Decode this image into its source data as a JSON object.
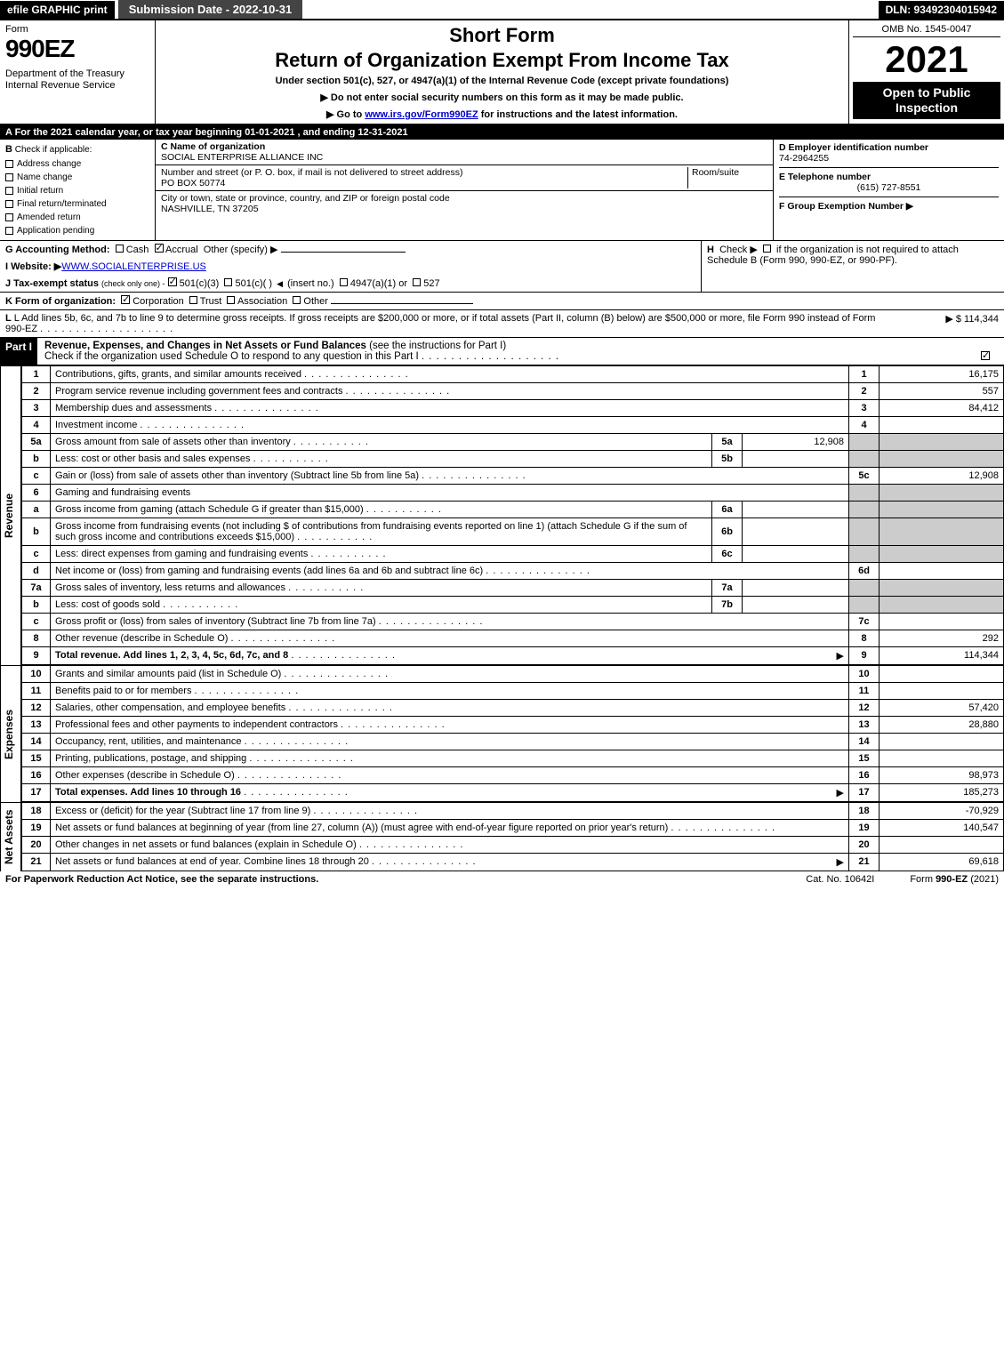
{
  "top": {
    "efile": "efile GRAPHIC print",
    "submission": "Submission Date - 2022-10-31",
    "dln": "DLN: 93492304015942"
  },
  "header": {
    "form_label": "Form",
    "form_number": "990EZ",
    "dept": "Department of the Treasury\nInternal Revenue Service",
    "short_form": "Short Form",
    "title": "Return of Organization Exempt From Income Tax",
    "subtitle": "Under section 501(c), 527, or 4947(a)(1) of the Internal Revenue Code (except private foundations)",
    "instr1": "▶ Do not enter social security numbers on this form as it may be made public.",
    "instr2_pre": "▶ Go to ",
    "instr2_link": "www.irs.gov/Form990EZ",
    "instr2_post": " for instructions and the latest information.",
    "omb": "OMB No. 1545-0047",
    "year": "2021",
    "inspection": "Open to Public Inspection"
  },
  "section_a": "A  For the 2021 calendar year, or tax year beginning 01-01-2021 , and ending 12-31-2021",
  "col_b": {
    "header": "B",
    "check_label": "Check if applicable:",
    "items": [
      "Address change",
      "Name change",
      "Initial return",
      "Final return/terminated",
      "Amended return",
      "Application pending"
    ]
  },
  "col_c": {
    "name_label": "C Name of organization",
    "name": "SOCIAL ENTERPRISE ALLIANCE INC",
    "addr_label": "Number and street (or P. O. box, if mail is not delivered to street address)",
    "room_label": "Room/suite",
    "addr": "PO BOX 50774",
    "city_label": "City or town, state or province, country, and ZIP or foreign postal code",
    "city": "NASHVILLE, TN  37205"
  },
  "col_d": {
    "ein_label": "D Employer identification number",
    "ein": "74-2964255",
    "tel_label": "E Telephone number",
    "tel": "(615) 727-8551",
    "group_label": "F Group Exemption Number  ▶"
  },
  "meta": {
    "g_label": "G Accounting Method:",
    "g_cash": "Cash",
    "g_accrual": "Accrual",
    "g_other": "Other (specify) ▶",
    "h_label": "H",
    "h_text1": "Check ▶",
    "h_text2": "if the organization is not required to attach Schedule B (Form 990, 990-EZ, or 990-PF).",
    "i_label": "I Website: ▶",
    "i_value": "WWW.SOCIALENTERPRISE.US",
    "j_label": "J Tax-exempt status",
    "j_sub": "(check only one) -",
    "j_501c3": "501(c)(3)",
    "j_501c": "501(c)(  )",
    "j_insert": "(insert no.)",
    "j_4947": "4947(a)(1) or",
    "j_527": "527",
    "k_label": "K Form of organization:",
    "k_corp": "Corporation",
    "k_trust": "Trust",
    "k_assoc": "Association",
    "k_other": "Other",
    "l_text": "L Add lines 5b, 6c, and 7b to line 9 to determine gross receipts. If gross receipts are $200,000 or more, or if total assets (Part II, column (B) below) are $500,000 or more, file Form 990 instead of Form 990-EZ",
    "l_amount": "$ 114,344"
  },
  "part1": {
    "label": "Part I",
    "title": "Revenue, Expenses, and Changes in Net Assets or Fund Balances",
    "title_sub": "(see the instructions for Part I)",
    "check_line": "Check if the organization used Schedule O to respond to any question in this Part I"
  },
  "revenue_lines": [
    {
      "n": "1",
      "desc": "Contributions, gifts, grants, and similar amounts received",
      "ref": "1",
      "amt": "16,175"
    },
    {
      "n": "2",
      "desc": "Program service revenue including government fees and contracts",
      "ref": "2",
      "amt": "557"
    },
    {
      "n": "3",
      "desc": "Membership dues and assessments",
      "ref": "3",
      "amt": "84,412"
    },
    {
      "n": "4",
      "desc": "Investment income",
      "ref": "4",
      "amt": ""
    },
    {
      "n": "5a",
      "desc": "Gross amount from sale of assets other than inventory",
      "sub": "5a",
      "subval": "12,908",
      "shaded": true
    },
    {
      "n": "b",
      "desc": "Less: cost or other basis and sales expenses",
      "sub": "5b",
      "subval": "",
      "shaded": true
    },
    {
      "n": "c",
      "desc": "Gain or (loss) from sale of assets other than inventory (Subtract line 5b from line 5a)",
      "ref": "5c",
      "amt": "12,908"
    },
    {
      "n": "6",
      "desc": "Gaming and fundraising events",
      "shaded": true,
      "nosub": true
    },
    {
      "n": "a",
      "desc": "Gross income from gaming (attach Schedule G if greater than $15,000)",
      "sub": "6a",
      "subval": "",
      "shaded": true
    },
    {
      "n": "b",
      "desc": "Gross income from fundraising events (not including $                    of contributions from fundraising events reported on line 1) (attach Schedule G if the sum of such gross income and contributions exceeds $15,000)",
      "sub": "6b",
      "subval": "",
      "shaded": true
    },
    {
      "n": "c",
      "desc": "Less: direct expenses from gaming and fundraising events",
      "sub": "6c",
      "subval": "",
      "shaded": true
    },
    {
      "n": "d",
      "desc": "Net income or (loss) from gaming and fundraising events (add lines 6a and 6b and subtract line 6c)",
      "ref": "6d",
      "amt": ""
    },
    {
      "n": "7a",
      "desc": "Gross sales of inventory, less returns and allowances",
      "sub": "7a",
      "subval": "",
      "shaded": true
    },
    {
      "n": "b",
      "desc": "Less: cost of goods sold",
      "sub": "7b",
      "subval": "",
      "shaded": true
    },
    {
      "n": "c",
      "desc": "Gross profit or (loss) from sales of inventory (Subtract line 7b from line 7a)",
      "ref": "7c",
      "amt": ""
    },
    {
      "n": "8",
      "desc": "Other revenue (describe in Schedule O)",
      "ref": "8",
      "amt": "292"
    },
    {
      "n": "9",
      "desc": "Total revenue. Add lines 1, 2, 3, 4, 5c, 6d, 7c, and 8",
      "ref": "9",
      "amt": "114,344",
      "bold": true,
      "arrow": true
    }
  ],
  "expense_lines": [
    {
      "n": "10",
      "desc": "Grants and similar amounts paid (list in Schedule O)",
      "ref": "10",
      "amt": ""
    },
    {
      "n": "11",
      "desc": "Benefits paid to or for members",
      "ref": "11",
      "amt": ""
    },
    {
      "n": "12",
      "desc": "Salaries, other compensation, and employee benefits",
      "ref": "12",
      "amt": "57,420"
    },
    {
      "n": "13",
      "desc": "Professional fees and other payments to independent contractors",
      "ref": "13",
      "amt": "28,880"
    },
    {
      "n": "14",
      "desc": "Occupancy, rent, utilities, and maintenance",
      "ref": "14",
      "amt": ""
    },
    {
      "n": "15",
      "desc": "Printing, publications, postage, and shipping",
      "ref": "15",
      "amt": ""
    },
    {
      "n": "16",
      "desc": "Other expenses (describe in Schedule O)",
      "ref": "16",
      "amt": "98,973"
    },
    {
      "n": "17",
      "desc": "Total expenses. Add lines 10 through 16",
      "ref": "17",
      "amt": "185,273",
      "bold": true,
      "arrow": true
    }
  ],
  "netassets_lines": [
    {
      "n": "18",
      "desc": "Excess or (deficit) for the year (Subtract line 17 from line 9)",
      "ref": "18",
      "amt": "-70,929"
    },
    {
      "n": "19",
      "desc": "Net assets or fund balances at beginning of year (from line 27, column (A)) (must agree with end-of-year figure reported on prior year's return)",
      "ref": "19",
      "amt": "140,547",
      "shaded_top": true
    },
    {
      "n": "20",
      "desc": "Other changes in net assets or fund balances (explain in Schedule O)",
      "ref": "20",
      "amt": ""
    },
    {
      "n": "21",
      "desc": "Net assets or fund balances at end of year. Combine lines 18 through 20",
      "ref": "21",
      "amt": "69,618",
      "arrow": true
    }
  ],
  "side_labels": {
    "revenue": "Revenue",
    "expenses": "Expenses",
    "netassets": "Net Assets"
  },
  "footer": {
    "left": "For Paperwork Reduction Act Notice, see the separate instructions.",
    "center": "Cat. No. 10642I",
    "right_pre": "Form ",
    "right_bold": "990-EZ",
    "right_post": " (2021)"
  }
}
